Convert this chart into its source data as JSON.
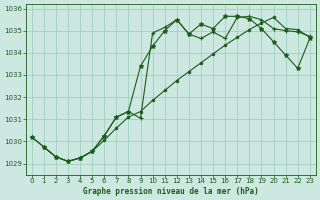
{
  "title": "Graphe pression niveau de la mer (hPa)",
  "bg_color": "#cce8e0",
  "grid_color": "#99ccbb",
  "line_color": "#1a5c1a",
  "xlim": [
    -0.5,
    23.5
  ],
  "ylim": [
    1028.5,
    1036.2
  ],
  "yticks": [
    1029,
    1030,
    1031,
    1032,
    1033,
    1034,
    1035,
    1036
  ],
  "xticks": [
    0,
    1,
    2,
    3,
    4,
    5,
    6,
    7,
    8,
    9,
    10,
    11,
    12,
    13,
    14,
    15,
    16,
    17,
    18,
    19,
    20,
    21,
    22,
    23
  ],
  "line1_x": [
    0,
    1,
    2,
    3,
    4,
    5,
    6,
    7,
    8,
    9,
    10,
    11,
    12,
    13,
    14,
    15,
    16,
    17,
    18,
    19,
    20,
    21,
    22,
    23
  ],
  "line1_y": [
    1030.2,
    1029.75,
    1029.3,
    1029.1,
    1029.25,
    1029.55,
    1030.25,
    1031.1,
    1031.35,
    1031.05,
    1034.9,
    1035.15,
    1035.5,
    1034.85,
    1034.65,
    1034.95,
    1034.65,
    1035.6,
    1035.65,
    1035.5,
    1035.1,
    1035.0,
    1034.95,
    1034.75
  ],
  "line2_x": [
    0,
    1,
    2,
    3,
    4,
    5,
    6,
    7,
    8,
    9,
    10,
    11,
    12,
    13,
    14,
    15,
    16,
    17,
    18,
    19,
    20,
    21,
    22,
    23
  ],
  "line2_y": [
    1030.2,
    1029.75,
    1029.3,
    1029.1,
    1029.25,
    1029.55,
    1030.25,
    1031.1,
    1031.35,
    1033.4,
    1034.3,
    1035.0,
    1035.5,
    1034.85,
    1035.3,
    1035.1,
    1035.65,
    1035.65,
    1035.55,
    1035.1,
    1034.5,
    1033.9,
    1033.3,
    1034.65
  ],
  "line3_x": [
    1,
    2,
    3,
    4,
    5,
    6,
    7,
    8,
    9,
    10,
    11,
    12,
    13,
    14,
    15,
    16,
    17,
    18,
    19,
    20,
    21,
    22,
    23
  ],
  "line3_y": [
    1029.75,
    1029.3,
    1029.1,
    1029.25,
    1029.55,
    1030.05,
    1030.6,
    1031.1,
    1031.35,
    1031.85,
    1032.3,
    1032.75,
    1033.15,
    1033.55,
    1033.95,
    1034.35,
    1034.7,
    1035.05,
    1035.35,
    1035.6,
    1035.1,
    1035.05,
    1034.7
  ]
}
